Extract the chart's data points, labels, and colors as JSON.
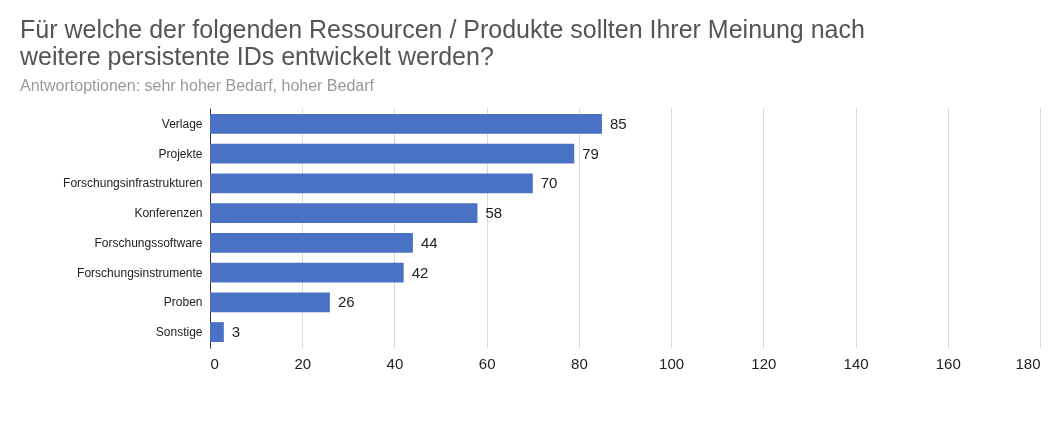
{
  "chart_data": {
    "type": "bar",
    "orientation": "horizontal",
    "title": "Für welche der folgenden Ressourcen / Produkte sollten Ihrer Meinung nach\nweitere persistente IDs entwickelt werden?",
    "subtitle": "Antwortoptionen: sehr hoher Bedarf, hoher Bedarf",
    "categories": [
      "Verlage",
      "Projekte",
      "Forschungsinfrastrukturen",
      "Konferenzen",
      "Forschungssoftware",
      "Forschungsinstrumente",
      "Proben",
      "Sonstige"
    ],
    "values": [
      85,
      79,
      70,
      58,
      44,
      42,
      26,
      3
    ],
    "color": "#4a72c4",
    "xlim": [
      0,
      180
    ],
    "xticks": [
      0,
      20,
      40,
      60,
      80,
      100,
      120,
      140,
      160,
      180
    ],
    "grid": "x",
    "data_labels": true
  }
}
